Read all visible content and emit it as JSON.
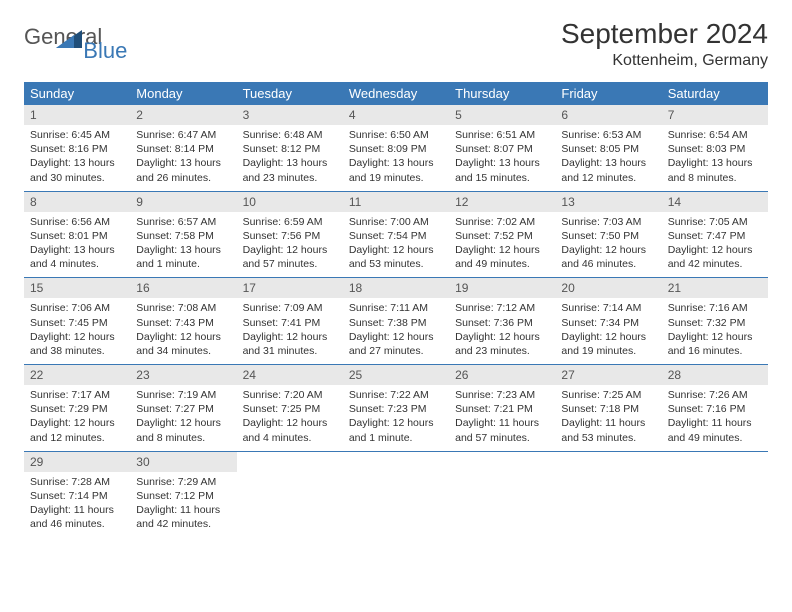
{
  "brand": {
    "main": "General",
    "sub": "Blue"
  },
  "title": "September 2024",
  "location": "Kottenheim, Germany",
  "colors": {
    "header_bg": "#3a78b5",
    "header_text": "#ffffff",
    "daynum_bg": "#e8e8e8",
    "border": "#3a78b5",
    "text": "#333333",
    "logo_accent": "#3a78b5"
  },
  "weekdays": [
    "Sunday",
    "Monday",
    "Tuesday",
    "Wednesday",
    "Thursday",
    "Friday",
    "Saturday"
  ],
  "days": [
    {
      "n": "1",
      "sunrise": "Sunrise: 6:45 AM",
      "sunset": "Sunset: 8:16 PM",
      "daylight": "Daylight: 13 hours and 30 minutes."
    },
    {
      "n": "2",
      "sunrise": "Sunrise: 6:47 AM",
      "sunset": "Sunset: 8:14 PM",
      "daylight": "Daylight: 13 hours and 26 minutes."
    },
    {
      "n": "3",
      "sunrise": "Sunrise: 6:48 AM",
      "sunset": "Sunset: 8:12 PM",
      "daylight": "Daylight: 13 hours and 23 minutes."
    },
    {
      "n": "4",
      "sunrise": "Sunrise: 6:50 AM",
      "sunset": "Sunset: 8:09 PM",
      "daylight": "Daylight: 13 hours and 19 minutes."
    },
    {
      "n": "5",
      "sunrise": "Sunrise: 6:51 AM",
      "sunset": "Sunset: 8:07 PM",
      "daylight": "Daylight: 13 hours and 15 minutes."
    },
    {
      "n": "6",
      "sunrise": "Sunrise: 6:53 AM",
      "sunset": "Sunset: 8:05 PM",
      "daylight": "Daylight: 13 hours and 12 minutes."
    },
    {
      "n": "7",
      "sunrise": "Sunrise: 6:54 AM",
      "sunset": "Sunset: 8:03 PM",
      "daylight": "Daylight: 13 hours and 8 minutes."
    },
    {
      "n": "8",
      "sunrise": "Sunrise: 6:56 AM",
      "sunset": "Sunset: 8:01 PM",
      "daylight": "Daylight: 13 hours and 4 minutes."
    },
    {
      "n": "9",
      "sunrise": "Sunrise: 6:57 AM",
      "sunset": "Sunset: 7:58 PM",
      "daylight": "Daylight: 13 hours and 1 minute."
    },
    {
      "n": "10",
      "sunrise": "Sunrise: 6:59 AM",
      "sunset": "Sunset: 7:56 PM",
      "daylight": "Daylight: 12 hours and 57 minutes."
    },
    {
      "n": "11",
      "sunrise": "Sunrise: 7:00 AM",
      "sunset": "Sunset: 7:54 PM",
      "daylight": "Daylight: 12 hours and 53 minutes."
    },
    {
      "n": "12",
      "sunrise": "Sunrise: 7:02 AM",
      "sunset": "Sunset: 7:52 PM",
      "daylight": "Daylight: 12 hours and 49 minutes."
    },
    {
      "n": "13",
      "sunrise": "Sunrise: 7:03 AM",
      "sunset": "Sunset: 7:50 PM",
      "daylight": "Daylight: 12 hours and 46 minutes."
    },
    {
      "n": "14",
      "sunrise": "Sunrise: 7:05 AM",
      "sunset": "Sunset: 7:47 PM",
      "daylight": "Daylight: 12 hours and 42 minutes."
    },
    {
      "n": "15",
      "sunrise": "Sunrise: 7:06 AM",
      "sunset": "Sunset: 7:45 PM",
      "daylight": "Daylight: 12 hours and 38 minutes."
    },
    {
      "n": "16",
      "sunrise": "Sunrise: 7:08 AM",
      "sunset": "Sunset: 7:43 PM",
      "daylight": "Daylight: 12 hours and 34 minutes."
    },
    {
      "n": "17",
      "sunrise": "Sunrise: 7:09 AM",
      "sunset": "Sunset: 7:41 PM",
      "daylight": "Daylight: 12 hours and 31 minutes."
    },
    {
      "n": "18",
      "sunrise": "Sunrise: 7:11 AM",
      "sunset": "Sunset: 7:38 PM",
      "daylight": "Daylight: 12 hours and 27 minutes."
    },
    {
      "n": "19",
      "sunrise": "Sunrise: 7:12 AM",
      "sunset": "Sunset: 7:36 PM",
      "daylight": "Daylight: 12 hours and 23 minutes."
    },
    {
      "n": "20",
      "sunrise": "Sunrise: 7:14 AM",
      "sunset": "Sunset: 7:34 PM",
      "daylight": "Daylight: 12 hours and 19 minutes."
    },
    {
      "n": "21",
      "sunrise": "Sunrise: 7:16 AM",
      "sunset": "Sunset: 7:32 PM",
      "daylight": "Daylight: 12 hours and 16 minutes."
    },
    {
      "n": "22",
      "sunrise": "Sunrise: 7:17 AM",
      "sunset": "Sunset: 7:29 PM",
      "daylight": "Daylight: 12 hours and 12 minutes."
    },
    {
      "n": "23",
      "sunrise": "Sunrise: 7:19 AM",
      "sunset": "Sunset: 7:27 PM",
      "daylight": "Daylight: 12 hours and 8 minutes."
    },
    {
      "n": "24",
      "sunrise": "Sunrise: 7:20 AM",
      "sunset": "Sunset: 7:25 PM",
      "daylight": "Daylight: 12 hours and 4 minutes."
    },
    {
      "n": "25",
      "sunrise": "Sunrise: 7:22 AM",
      "sunset": "Sunset: 7:23 PM",
      "daylight": "Daylight: 12 hours and 1 minute."
    },
    {
      "n": "26",
      "sunrise": "Sunrise: 7:23 AM",
      "sunset": "Sunset: 7:21 PM",
      "daylight": "Daylight: 11 hours and 57 minutes."
    },
    {
      "n": "27",
      "sunrise": "Sunrise: 7:25 AM",
      "sunset": "Sunset: 7:18 PM",
      "daylight": "Daylight: 11 hours and 53 minutes."
    },
    {
      "n": "28",
      "sunrise": "Sunrise: 7:26 AM",
      "sunset": "Sunset: 7:16 PM",
      "daylight": "Daylight: 11 hours and 49 minutes."
    },
    {
      "n": "29",
      "sunrise": "Sunrise: 7:28 AM",
      "sunset": "Sunset: 7:14 PM",
      "daylight": "Daylight: 11 hours and 46 minutes."
    },
    {
      "n": "30",
      "sunrise": "Sunrise: 7:29 AM",
      "sunset": "Sunset: 7:12 PM",
      "daylight": "Daylight: 11 hours and 42 minutes."
    }
  ]
}
